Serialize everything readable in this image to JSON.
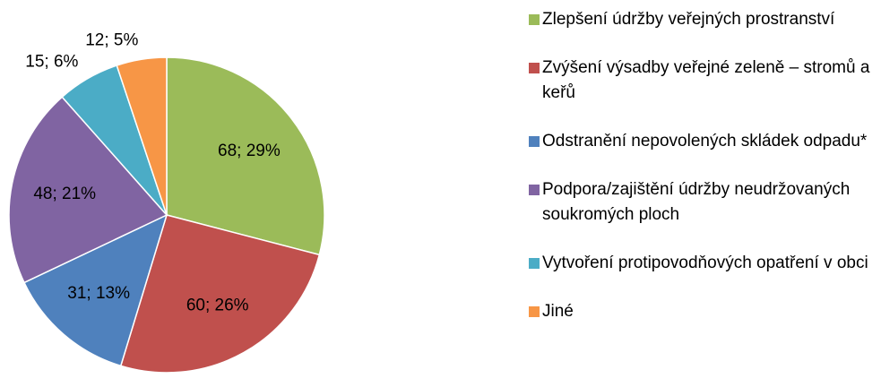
{
  "chart_data": {
    "type": "pie",
    "categories": [
      "Zlepšení údržby veřejných prostranství",
      "Zvýšení výsadby veřejné zeleně – stromů a keřů",
      "Odstranění nepovolených skládek odpadu*",
      "Podpora/zajištění údržby neudržovaných soukromých ploch",
      "Vytvoření protipovodňových opatření v obci",
      "Jiné"
    ],
    "values": [
      68,
      60,
      31,
      48,
      15,
      12
    ],
    "value_labels": [
      "68; 29%",
      "60; 26%",
      "31; 13%",
      "48; 21%",
      "15; 6%",
      "12; 5%"
    ],
    "colors": [
      "#9bbb59",
      "#c0504d",
      "#4f81bd",
      "#8064a2",
      "#4bacc6",
      "#f79646"
    ],
    "legend": "right"
  }
}
